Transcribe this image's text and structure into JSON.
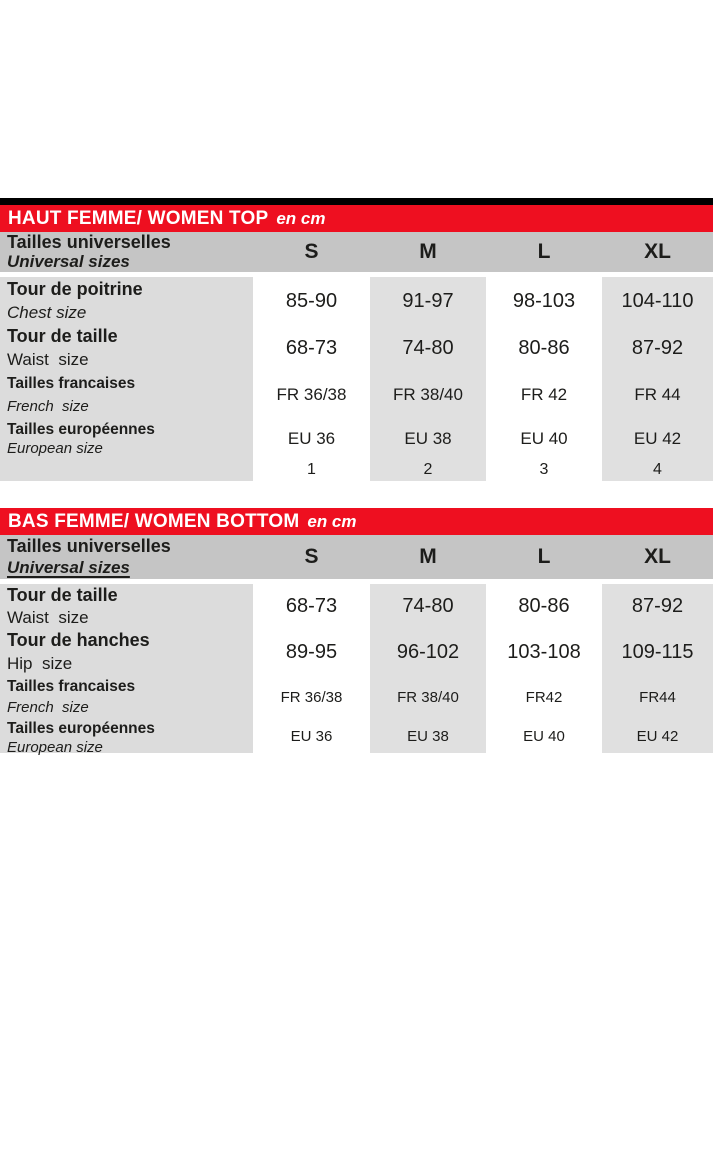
{
  "colors": {
    "header_red": "#ee0f20",
    "thead_gray": "#c5c5c5",
    "label_column_gray": "#dcdcdc",
    "column_gray": "#e0e0e0",
    "text": "#1d1d1b",
    "top_bar_black": "#000000"
  },
  "chart_data": [
    {
      "type": "table",
      "title": "HAUT FEMME/ WOMEN TOP",
      "unit": "en cm",
      "header": {
        "fr": "Tailles universelles",
        "en": "Universal sizes"
      },
      "columns": [
        "S",
        "M",
        "L",
        "XL"
      ],
      "rows": [
        {
          "fr": "Tour de poitrine",
          "en": "Chest size",
          "values": [
            "85-90",
            "91-97",
            "98-103",
            "104-110"
          ]
        },
        {
          "fr": "Tour de taille",
          "en": "Waist  size",
          "values": [
            "68-73",
            "74-80",
            "80-86",
            "87-92"
          ]
        },
        {
          "fr": "Tailles francaises",
          "en": "French  size",
          "values": [
            "FR 36/38",
            "FR 38/40",
            "FR 42",
            "FR 44"
          ]
        },
        {
          "fr": "Tailles européennes",
          "en": "European size",
          "values": [
            "EU 36",
            "EU 38",
            "EU 40",
            "EU 42"
          ]
        },
        {
          "fr": "",
          "en": "",
          "values": [
            "1",
            "2",
            "3",
            "4"
          ]
        }
      ]
    },
    {
      "type": "table",
      "title": "BAS FEMME/ WOMEN BOTTOM",
      "unit": "en cm",
      "header": {
        "fr": "Tailles universelles",
        "en": "Universal sizes"
      },
      "columns": [
        "S",
        "M",
        "L",
        "XL"
      ],
      "rows": [
        {
          "fr": "Tour de taille",
          "en": "Waist  size",
          "values": [
            "68-73",
            "74-80",
            "80-86",
            "87-92"
          ]
        },
        {
          "fr": "Tour de hanches",
          "en": "Hip  size",
          "values": [
            "89-95",
            "96-102",
            "103-108",
            "109-115"
          ]
        },
        {
          "fr": "Tailles francaises",
          "en": "French  size",
          "values": [
            "FR 36/38",
            "FR 38/40",
            "FR42",
            "FR44"
          ]
        },
        {
          "fr": "Tailles européennes",
          "en": "European size",
          "values": [
            "EU 36",
            "EU 38",
            "EU 40",
            "EU 42"
          ]
        }
      ]
    }
  ]
}
